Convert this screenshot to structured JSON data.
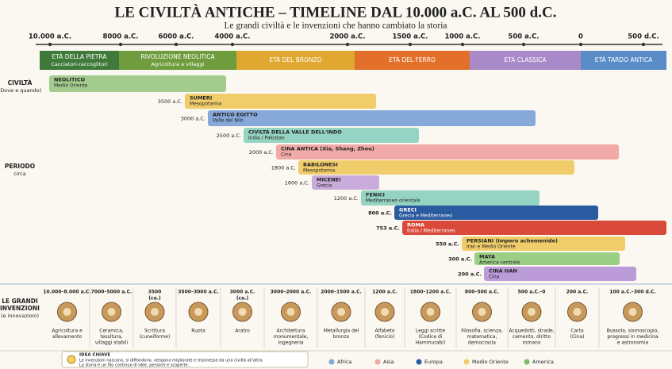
{
  "title": "LE CIVILTÀ ANTICHE – TIMELINE DAL 10.000 a.C. AL 500 d.C.",
  "subtitle": "Le grandi civiltà e le invenzioni che hanno cambiato la storia",
  "axis": {
    "ticks": [
      "10.000 a.C.",
      "8000 a.C.",
      "6000 a.C.",
      "4000 a.C.",
      "2000 a.C.",
      "1500 a.C.",
      "1000 a.C.",
      "500 a.C.",
      "0",
      "500 d.C."
    ]
  },
  "eras": [
    {
      "label": "ETÀ DELLA PIETRA",
      "sub": "Cacciatori-raccoglitori",
      "color": "#3f7a3a"
    },
    {
      "label": "RIVOLUZIONE NEOLITICA",
      "sub": "Agricoltura e villaggi",
      "color": "#6f9c3c"
    },
    {
      "label": "ETÀ DEL BRONZO",
      "color": "#e0a830"
    },
    {
      "label": "ETÀ DEL FERRO",
      "color": "#e3702a"
    },
    {
      "label": "ETÀ CLASSICA",
      "color": "#a98ac8"
    },
    {
      "label": "ETÀ TARDO ANTICA",
      "color": "#5a8cc8"
    }
  ],
  "sections": {
    "civ": [
      "CIVILTÀ",
      "(Dove e quando)"
    ],
    "period": [
      "PERIODO",
      "circa"
    ],
    "inv": [
      "LE GRANDI",
      "INVENZIONI",
      "(e innovazioni)"
    ]
  },
  "civilizations": [
    {
      "name": "NEOLITICO",
      "region": "Medio Oriente",
      "color": "#a3cc8e"
    },
    {
      "name": "SUMERI",
      "region": "Mesopotamia",
      "start": "3500 a.C.",
      "color": "#f0cd6a"
    },
    {
      "name": "ANTICO EGITTO",
      "region": "Valle del Nilo",
      "start": "3000 a.C.",
      "color": "#86a9da"
    },
    {
      "name": "CIVILTÀ DELLA VALLE DELL'INDO",
      "region": "India / Pakistan",
      "start": "2500 a.C.",
      "color": "#95d3c2"
    },
    {
      "name": "CINA ANTICA (Xia, Shang, Zhou)",
      "region": "Cina",
      "start": "2000 a.C.",
      "color": "#f2aaa8"
    },
    {
      "name": "BABILONESI",
      "region": "Mesopotamia",
      "start": "1800 a.C.",
      "color": "#f0cd6a"
    },
    {
      "name": "MICENEI",
      "region": "Grecia",
      "start": "1600 a.C.",
      "color": "#c9abdc"
    },
    {
      "name": "FENICI",
      "region": "Mediterraneo orientale",
      "start": "1200 a.C.",
      "color": "#95d3c2"
    },
    {
      "name": "GRECI",
      "region": "Grecia e Mediterraneo",
      "start": "800 a.C.",
      "color": "#2a5aa0"
    },
    {
      "name": "ROMA",
      "region": "Italia / Mediterraneo",
      "start": "753 a.C.",
      "color": "#d94a3a"
    },
    {
      "name": "PERSIANI (Impero achemenide)",
      "region": "Iran e Medio Oriente",
      "start": "550 a.C.",
      "color": "#f0cd6a"
    },
    {
      "name": "MAYA",
      "region": "America centrale",
      "start": "300 a.C.",
      "color": "#9ccf86"
    },
    {
      "name": "CINA HAN",
      "region": "Cina",
      "start": "200 a.C.",
      "color": "#bb9cd8"
    }
  ],
  "inventions": [
    {
      "date": [
        "10.000–8.000 a.C."
      ],
      "lines": [
        "Agricoltura e",
        "allevamento"
      ]
    },
    {
      "date": [
        "7000–5000 a.C."
      ],
      "lines": [
        "Ceramica,",
        "tessitura,",
        "villaggi stabili"
      ]
    },
    {
      "date": [
        "3500",
        "(ca.)"
      ],
      "lines": [
        "Scrittura",
        "(cuneiforme)"
      ]
    },
    {
      "date": [
        "3500–3000 a.C."
      ],
      "lines": [
        "Ruota"
      ]
    },
    {
      "date": [
        "3000 a.C.",
        "(ca.)"
      ],
      "lines": [
        "Aratro"
      ]
    },
    {
      "date": [
        "3000–2000 a.C."
      ],
      "lines": [
        "Architettura",
        "monumentale,",
        "ingegneria"
      ]
    },
    {
      "date": [
        "2000–1500 a.C."
      ],
      "lines": [
        "Metallurgia del",
        "bronzo"
      ]
    },
    {
      "date": [
        "1200 a.C."
      ],
      "lines": [
        "Alfabeto",
        "(fenicio)"
      ]
    },
    {
      "date": [
        "1800–1200 a.C."
      ],
      "lines": [
        "Leggi scritte",
        "(Codice di",
        "Hammurabi)"
      ]
    },
    {
      "date": [
        "800–500 a.C."
      ],
      "lines": [
        "Filosofia, scienza,",
        "matematica,",
        "democrazia"
      ]
    },
    {
      "date": [
        "500 a.C.–0"
      ],
      "lines": [
        "Acquedotti, strade,",
        "cemento, diritto",
        "romano"
      ]
    },
    {
      "date": [
        "200 a.C."
      ],
      "lines": [
        "Carta",
        "(Cina)"
      ]
    },
    {
      "date": [
        "100 a.C.–300 d.C."
      ],
      "lines": [
        "Bussola, sismoscopio,",
        "progressi in medicina",
        "e astronomia"
      ]
    }
  ],
  "idea": {
    "title": "IDEA CHIAVE",
    "lines": [
      "Le invenzioni nascono, si diffondono, vengono migliorate e trasmesse da una civiltà all'altra.",
      "La storia è un filo continuo di idee, persone e scoperte."
    ]
  },
  "legend": [
    {
      "label": "Africa",
      "color": "#86a9da"
    },
    {
      "label": "Asia",
      "color": "#f2aaa8"
    },
    {
      "label": "Europa",
      "color": "#2a5aa0"
    },
    {
      "label": "Medio Oriente",
      "color": "#f0cd6a"
    },
    {
      "label": "America",
      "color": "#7bbd66"
    }
  ]
}
